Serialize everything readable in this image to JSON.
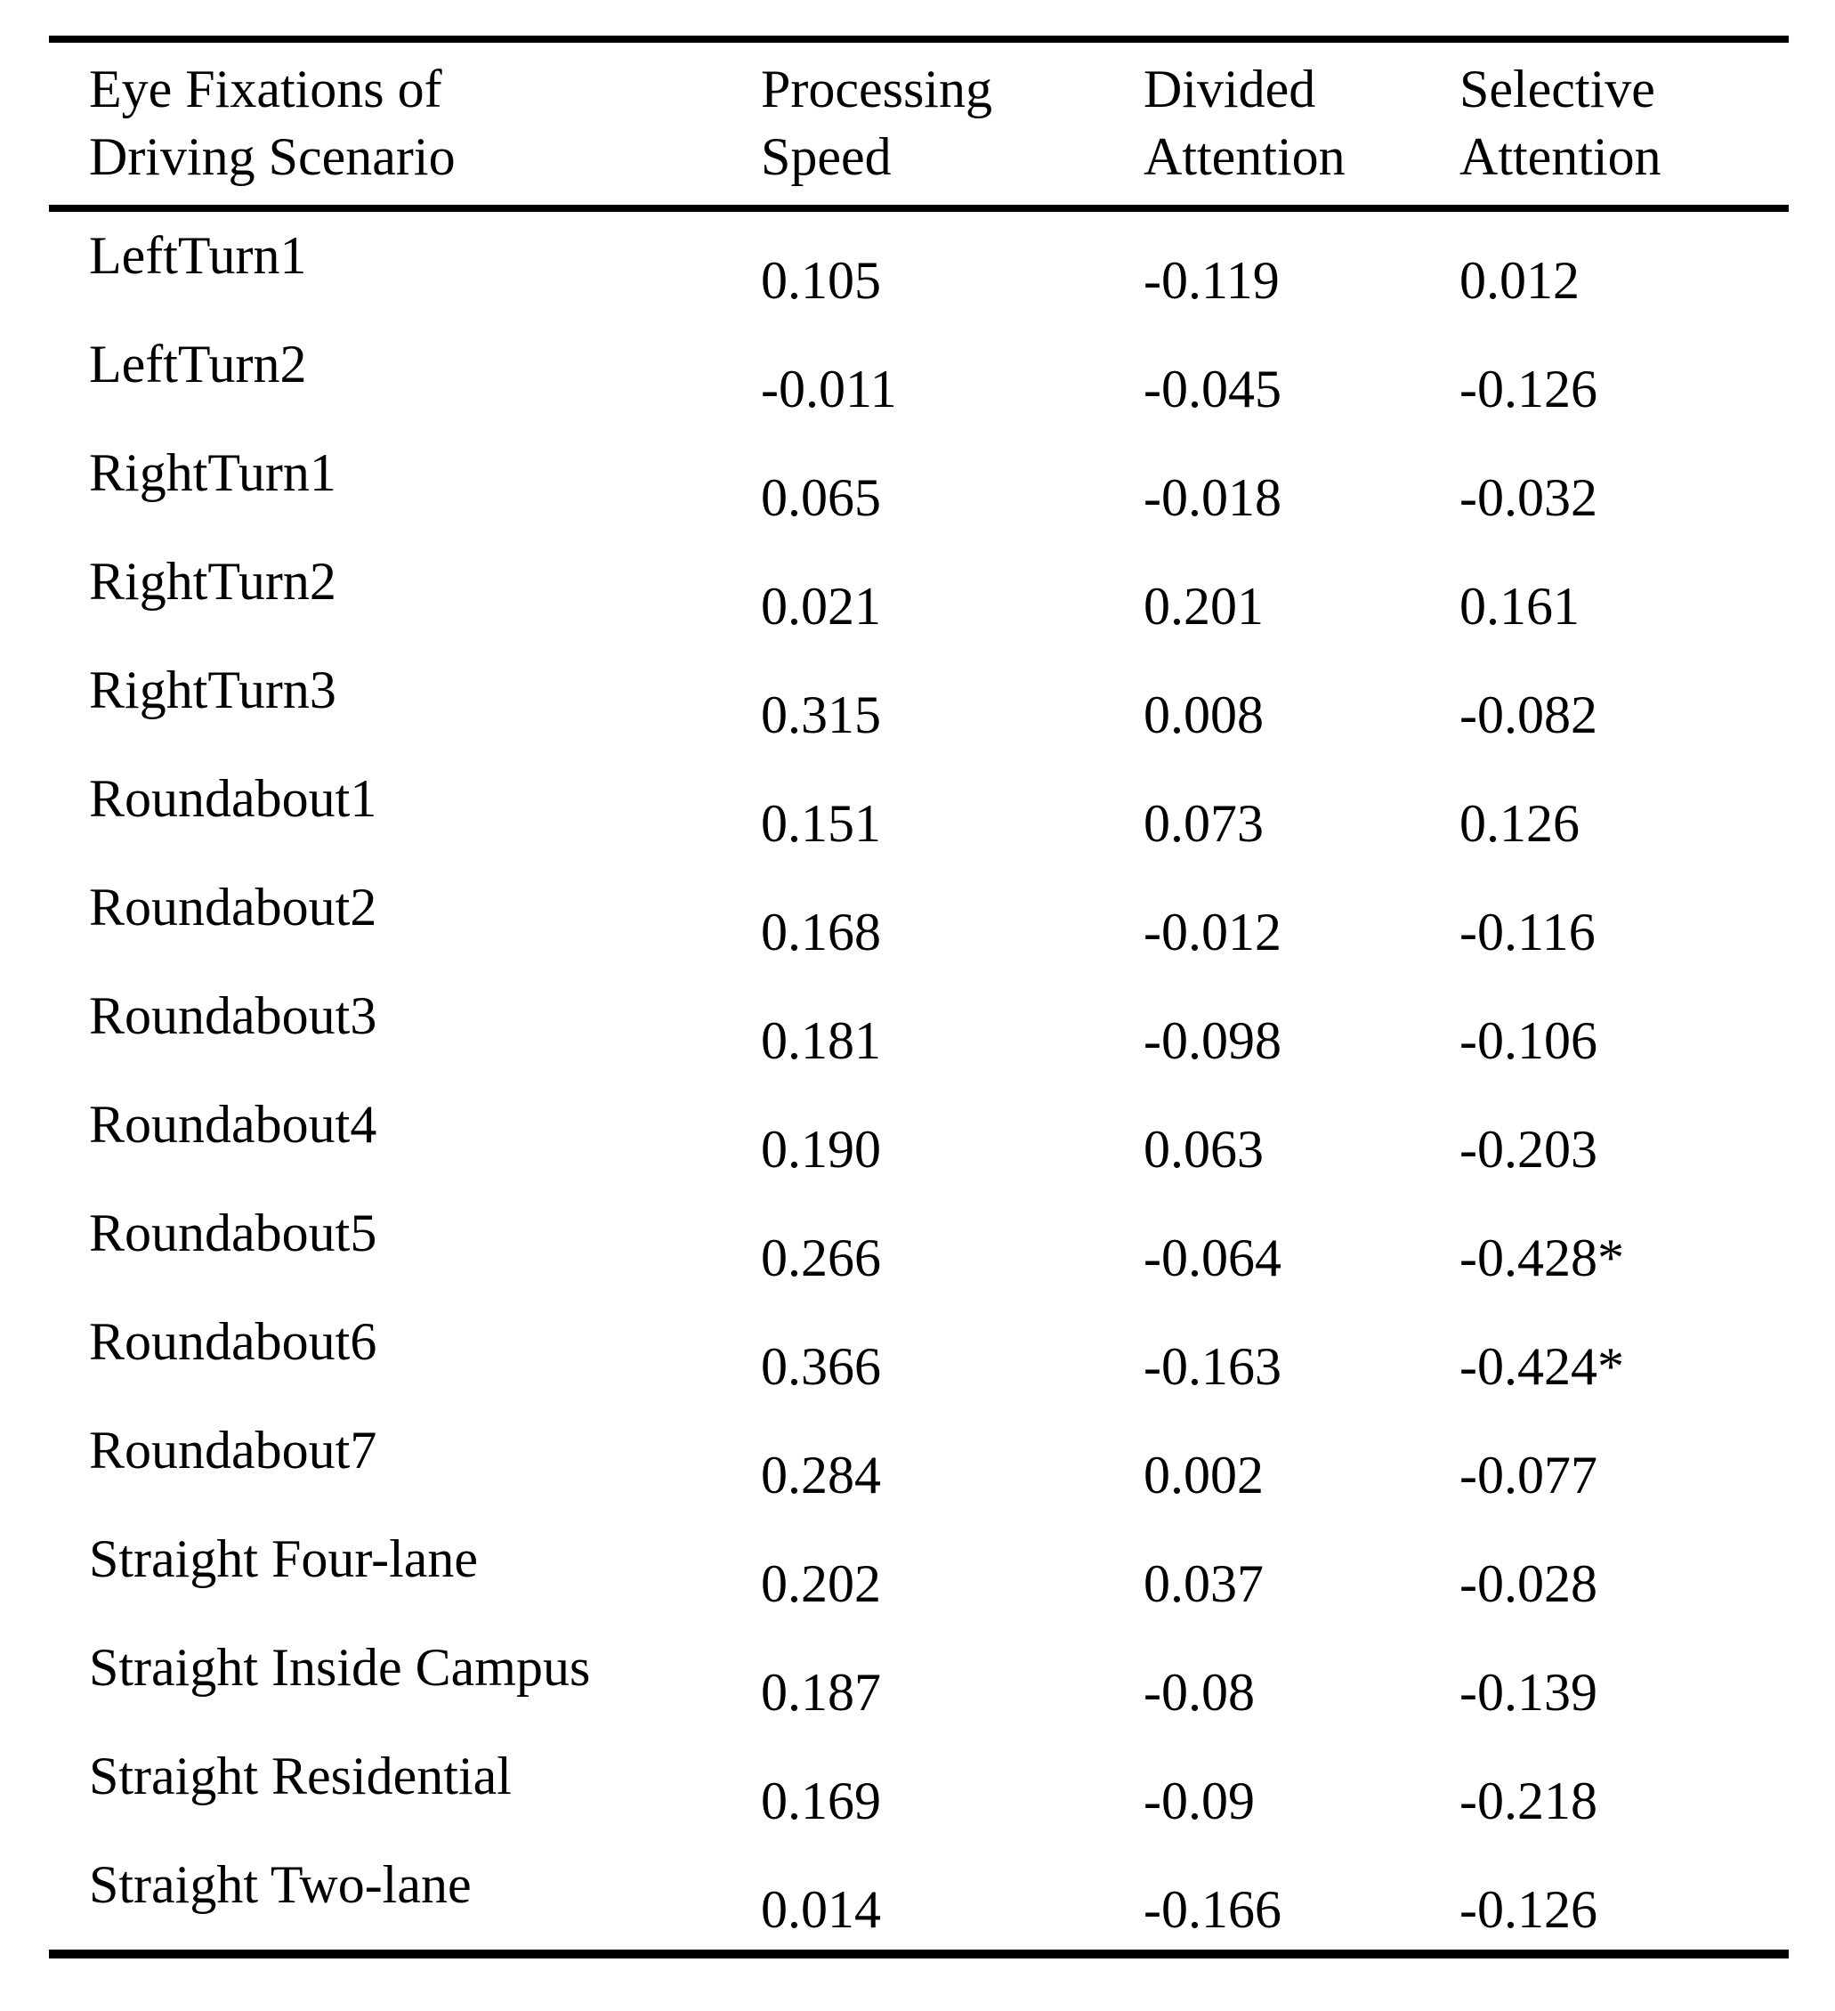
{
  "colors": {
    "background": "#ffffff",
    "text": "#000000",
    "rule": "#000000"
  },
  "table": {
    "header": {
      "col1": "Eye Fixations of\nDriving Scenario",
      "col2": "Processing\nSpeed",
      "col3": "Divided\nAttention",
      "col4": "Selective\nAttention"
    },
    "rows": [
      {
        "label": "LeftTurn1",
        "values": [
          "0.105",
          "-0.119",
          "0.012"
        ]
      },
      {
        "label": "LeftTurn2",
        "values": [
          "-0.011",
          "-0.045",
          "-0.126"
        ]
      },
      {
        "label": "RightTurn1",
        "values": [
          "0.065",
          "-0.018",
          "-0.032"
        ]
      },
      {
        "label": "RightTurn2",
        "values": [
          "0.021",
          "0.201",
          "0.161"
        ]
      },
      {
        "label": "RightTurn3",
        "values": [
          "0.315",
          "0.008",
          "-0.082"
        ]
      },
      {
        "label": "Roundabout1",
        "values": [
          "0.151",
          "0.073",
          "0.126"
        ]
      },
      {
        "label": "Roundabout2",
        "values": [
          "0.168",
          "-0.012",
          "-0.116"
        ]
      },
      {
        "label": "Roundabout3",
        "values": [
          "0.181",
          "-0.098",
          "-0.106"
        ]
      },
      {
        "label": "Roundabout4",
        "values": [
          "0.190",
          "0.063",
          "-0.203"
        ]
      },
      {
        "label": "Roundabout5",
        "values": [
          "0.266",
          "-0.064",
          "-0.428*"
        ]
      },
      {
        "label": "Roundabout6",
        "values": [
          "0.366",
          "-0.163",
          "-0.424*"
        ]
      },
      {
        "label": "Roundabout7",
        "values": [
          "0.284",
          "0.002",
          "-0.077"
        ]
      },
      {
        "label": "Straight Four-lane",
        "values": [
          "0.202",
          "0.037",
          "-0.028"
        ]
      },
      {
        "label": "Straight Inside Campus",
        "values": [
          "0.187",
          "-0.08",
          "-0.139"
        ]
      },
      {
        "label": "Straight Residential",
        "values": [
          "0.169",
          "-0.09",
          "-0.218"
        ]
      },
      {
        "label": "Straight Two-lane",
        "values": [
          "0.014",
          "-0.166",
          "-0.126"
        ]
      }
    ]
  }
}
